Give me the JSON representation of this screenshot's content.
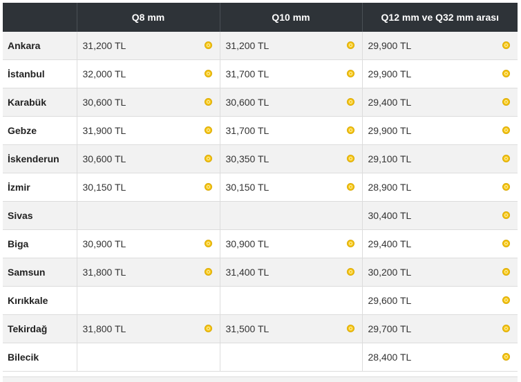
{
  "table": {
    "headers": [
      "",
      "Q8 mm",
      "Q10 mm",
      "Q12 mm ve Q32 mm arası"
    ],
    "rows": [
      {
        "city": "Ankara",
        "q8": "31,200 TL",
        "q10": "31,200 TL",
        "q12_32": "29,900 TL"
      },
      {
        "city": "İstanbul",
        "q8": "32,000 TL",
        "q10": "31,700 TL",
        "q12_32": "29,900 TL"
      },
      {
        "city": "Karabük",
        "q8": "30,600 TL",
        "q10": "30,600 TL",
        "q12_32": "29,400 TL"
      },
      {
        "city": "Gebze",
        "q8": "31,900 TL",
        "q10": "31,700 TL",
        "q12_32": "29,900 TL"
      },
      {
        "city": "İskenderun",
        "q8": "30,600 TL",
        "q10": "30,350 TL",
        "q12_32": "29,100 TL"
      },
      {
        "city": "İzmir",
        "q8": "30,150 TL",
        "q10": "30,150 TL",
        "q12_32": "28,900 TL"
      },
      {
        "city": "Sivas",
        "q8": "",
        "q10": "",
        "q12_32": "30,400 TL"
      },
      {
        "city": "Biga",
        "q8": "30,900 TL",
        "q10": "30,900 TL",
        "q12_32": "29,400 TL"
      },
      {
        "city": "Samsun",
        "q8": "31,800 TL",
        "q10": "31,400 TL",
        "q12_32": "30,200 TL"
      },
      {
        "city": "Kırıkkale",
        "q8": "",
        "q10": "",
        "q12_32": "29,600 TL"
      },
      {
        "city": "Tekirdağ",
        "q8": "31,800 TL",
        "q10": "31,500 TL",
        "q12_32": "29,700 TL"
      },
      {
        "city": "Bilecik",
        "q8": "",
        "q10": "",
        "q12_32": "28,400 TL"
      }
    ]
  },
  "colors": {
    "header_bg": "#2e3338",
    "row_alt_bg": "#f2f2f2",
    "coin_icon": "#f5c518"
  },
  "icons": {
    "price_marker": "gold-coin-icon"
  }
}
